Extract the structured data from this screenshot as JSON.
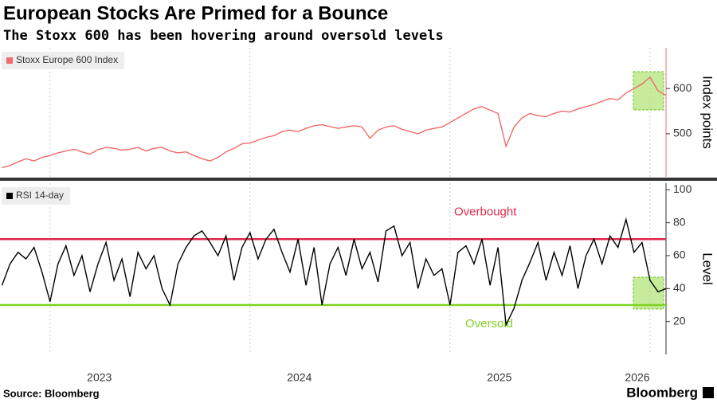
{
  "title": "European Stocks Are Primed for a Bounce",
  "subtitle": "The Stoxx 600 has been hovering around oversold levels",
  "source": "Source: Bloomberg",
  "brand": "Bloomberg",
  "chart_data": [
    {
      "type": "line",
      "y_label": "Index points",
      "x": [
        2022.76,
        2022.8,
        2022.84,
        2022.88,
        2022.92,
        2022.96,
        2023.0,
        2023.04,
        2023.08,
        2023.12,
        2023.16,
        2023.2,
        2023.24,
        2023.28,
        2023.32,
        2023.36,
        2023.4,
        2023.44,
        2023.48,
        2023.52,
        2023.56,
        2023.6,
        2023.64,
        2023.68,
        2023.72,
        2023.76,
        2023.8,
        2023.84,
        2023.88,
        2023.92,
        2023.96,
        2024.0,
        2024.04,
        2024.08,
        2024.12,
        2024.16,
        2024.2,
        2024.24,
        2024.28,
        2024.32,
        2024.36,
        2024.4,
        2024.44,
        2024.48,
        2024.52,
        2024.56,
        2024.6,
        2024.64,
        2024.68,
        2024.72,
        2024.76,
        2024.8,
        2024.84,
        2024.88,
        2024.92,
        2024.96,
        2025.0,
        2025.04,
        2025.08,
        2025.12,
        2025.16,
        2025.2,
        2025.24,
        2025.28,
        2025.32,
        2025.36,
        2025.4,
        2025.44,
        2025.48,
        2025.52,
        2025.56,
        2025.6,
        2025.64,
        2025.68,
        2025.72,
        2025.76,
        2025.8,
        2025.84,
        2025.88,
        2025.92,
        2025.96,
        2026.0,
        2026.04,
        2026.08
      ],
      "series": [
        {
          "name": "Stoxx Europe 600 Index",
          "color": "#f06b6b",
          "values": [
            425,
            430,
            438,
            445,
            440,
            448,
            452,
            458,
            462,
            466,
            460,
            455,
            465,
            470,
            468,
            464,
            466,
            470,
            462,
            468,
            470,
            462,
            458,
            460,
            452,
            445,
            440,
            448,
            460,
            468,
            478,
            480,
            486,
            492,
            496,
            505,
            508,
            505,
            512,
            518,
            520,
            516,
            512,
            515,
            518,
            515,
            490,
            508,
            515,
            518,
            510,
            505,
            500,
            508,
            512,
            515,
            525,
            535,
            545,
            555,
            560,
            552,
            545,
            472,
            515,
            535,
            545,
            540,
            538,
            545,
            550,
            548,
            555,
            560,
            565,
            572,
            578,
            575,
            590,
            600,
            610,
            625,
            595,
            585
          ]
        }
      ],
      "xlim": [
        2022.75,
        2026.08
      ],
      "xticks": [
        2023,
        2024,
        2025,
        2026
      ],
      "ylim": [
        405,
        690
      ],
      "yticks": [
        500,
        600
      ],
      "grid": true
    },
    {
      "type": "line",
      "y_label": "Level",
      "x": [
        2022.76,
        2022.8,
        2022.84,
        2022.88,
        2022.92,
        2022.96,
        2023.0,
        2023.04,
        2023.08,
        2023.12,
        2023.16,
        2023.2,
        2023.24,
        2023.28,
        2023.32,
        2023.36,
        2023.4,
        2023.44,
        2023.48,
        2023.52,
        2023.56,
        2023.6,
        2023.64,
        2023.68,
        2023.72,
        2023.76,
        2023.8,
        2023.84,
        2023.88,
        2023.92,
        2023.96,
        2024.0,
        2024.04,
        2024.08,
        2024.12,
        2024.16,
        2024.2,
        2024.24,
        2024.28,
        2024.32,
        2024.36,
        2024.4,
        2024.44,
        2024.48,
        2024.52,
        2024.56,
        2024.6,
        2024.64,
        2024.68,
        2024.72,
        2024.76,
        2024.8,
        2024.84,
        2024.88,
        2024.92,
        2024.96,
        2025.0,
        2025.04,
        2025.08,
        2025.12,
        2025.16,
        2025.2,
        2025.24,
        2025.28,
        2025.32,
        2025.36,
        2025.4,
        2025.44,
        2025.48,
        2025.52,
        2025.56,
        2025.6,
        2025.64,
        2025.68,
        2025.72,
        2025.76,
        2025.8,
        2025.84,
        2025.88,
        2025.92,
        2025.96,
        2026.0,
        2026.04,
        2026.08
      ],
      "series": [
        {
          "name": "RSI 14-day",
          "color": "#000000",
          "values": [
            42,
            55,
            62,
            58,
            65,
            50,
            32,
            55,
            66,
            48,
            60,
            38,
            55,
            68,
            45,
            58,
            35,
            62,
            52,
            60,
            40,
            30,
            55,
            65,
            72,
            75,
            68,
            60,
            72,
            45,
            65,
            74,
            58,
            70,
            76,
            62,
            50,
            70,
            42,
            65,
            30,
            55,
            65,
            48,
            70,
            52,
            62,
            44,
            75,
            78,
            60,
            68,
            40,
            58,
            48,
            52,
            30,
            62,
            66,
            55,
            70,
            42,
            65,
            18,
            28,
            45,
            56,
            68,
            45,
            62,
            48,
            66,
            40,
            60,
            70,
            55,
            72,
            65,
            82,
            62,
            68,
            45,
            38,
            40
          ]
        }
      ],
      "reference_lines": [
        {
          "value": 70,
          "color": "#e0284a",
          "label": "Overbought"
        },
        {
          "value": 30,
          "color": "#7ed321",
          "label": "Oversold"
        }
      ],
      "xlim": [
        2022.75,
        2026.08
      ],
      "xticks": [
        2023,
        2024,
        2025,
        2026
      ],
      "ylim": [
        0,
        104
      ],
      "yticks": [
        20,
        40,
        60,
        80,
        100
      ],
      "grid": true
    }
  ]
}
